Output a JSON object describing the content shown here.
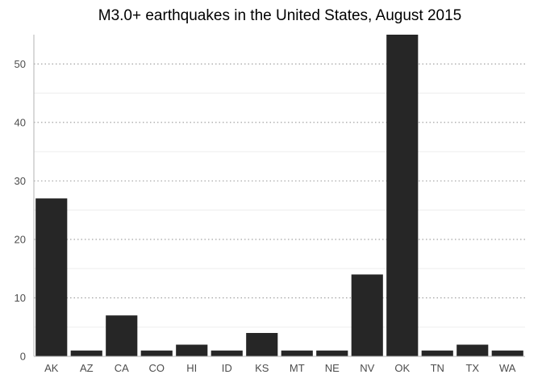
{
  "chart_data": {
    "type": "bar",
    "title": "M3.0+ earthquakes in the United States, August 2015",
    "xlabel": "",
    "ylabel": "",
    "categories": [
      "AK",
      "AZ",
      "CA",
      "CO",
      "HI",
      "ID",
      "KS",
      "MT",
      "NE",
      "NV",
      "OK",
      "TN",
      "TX",
      "WA"
    ],
    "values": [
      27,
      1,
      7,
      1,
      2,
      1,
      4,
      1,
      1,
      14,
      55,
      1,
      2,
      1
    ],
    "ylim": [
      0,
      55
    ],
    "yticks": [
      0,
      10,
      20,
      30,
      40,
      50
    ],
    "ytick_labels": [
      "0",
      "10",
      "20",
      "30",
      "40",
      "50"
    ],
    "grid": "horizontal-dotted",
    "colors": {
      "bar": "#262626",
      "major_grid": "#9a9a9a",
      "minor_grid": "#ededed",
      "axis": "#b3b3b3"
    }
  }
}
